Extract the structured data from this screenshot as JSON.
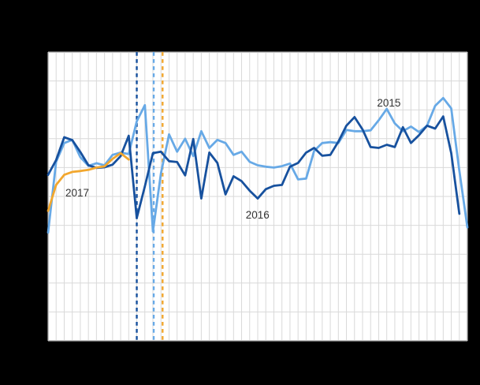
{
  "page": {
    "background_color": "#000000"
  },
  "plot": {
    "background_color": "#ffffff",
    "grid_color": "#d9d9d9",
    "border_color": "#c6c6c6",
    "label_color": "#333333"
  },
  "chart_data": {
    "type": "line",
    "title": "",
    "xlabel": "",
    "ylabel": "",
    "x_axis": {
      "unit": "week_of_year",
      "min": 1,
      "max": 53,
      "gridline_every_week": 1,
      "tick_labels_visible": false
    },
    "y_axis": {
      "unit": "percent_of_plot_height",
      "min": 0,
      "max": 100,
      "gridline_rows": 10,
      "tick_labels_visible": false
    },
    "grid": "on",
    "legend": "inline-labels",
    "series": [
      {
        "name": "2015",
        "color": "#67a9e6",
        "style": "solid",
        "start_week": 1,
        "values": [
          37.5,
          62,
          68.5,
          69.6,
          63.6,
          60.6,
          61.5,
          60.8,
          64.4,
          65.2,
          64.7,
          76,
          81.6,
          37.9,
          58,
          71.5,
          65.5,
          70,
          64,
          72.6,
          66.8,
          69.6,
          68.5,
          64.4,
          65.5,
          62,
          60.8,
          60.3,
          60,
          60.5,
          61.4,
          55.9,
          56.2,
          65.8,
          68.5,
          68.8,
          68.5,
          73,
          72.6,
          72.6,
          72.9,
          76.4,
          80.3,
          75.3,
          72.6,
          74.2,
          72.3,
          74.5,
          81.4,
          84.1,
          80.5,
          58.9,
          39.3
        ]
      },
      {
        "name": "2016",
        "color": "#17519e",
        "style": "solid",
        "start_week": 1,
        "values": [
          57.5,
          62.6,
          70.5,
          69.5,
          65.4,
          60.8,
          59.9,
          60.1,
          61,
          64,
          71,
          42.5,
          53.5,
          65,
          65.5,
          62.2,
          61.9,
          57.3,
          69.9,
          49.3,
          65.2,
          61.6,
          50.7,
          57,
          55.3,
          52,
          49.3,
          52.5,
          53.7,
          54,
          60.3,
          61.6,
          65.2,
          66.8,
          64.1,
          64.4,
          69,
          74.5,
          77.5,
          73.2,
          67.1,
          66.8,
          67.9,
          67.1,
          74,
          68.5,
          71.2,
          74.5,
          73.5,
          77.7,
          65,
          44
        ]
      },
      {
        "name": "2017",
        "color": "#f2a72e",
        "style": "solid",
        "start_week": 1,
        "values": [
          45,
          54,
          57.5,
          58.5,
          58.8,
          59.2,
          60,
          60.4,
          63,
          65,
          62.8
        ]
      }
    ],
    "vertical_dashed_markers": [
      {
        "week": 12.0,
        "color": "#17519e"
      },
      {
        "week": 14.1,
        "color": "#67a9e6"
      },
      {
        "week": 15.2,
        "color": "#f2a72e"
      }
    ],
    "annotations": [
      {
        "text": "2017",
        "week": 3.15,
        "value": 50.0
      },
      {
        "text": "2016",
        "week": 25.5,
        "value": 42.3
      },
      {
        "text": "2015",
        "week": 41.8,
        "value": 81.1
      }
    ]
  }
}
